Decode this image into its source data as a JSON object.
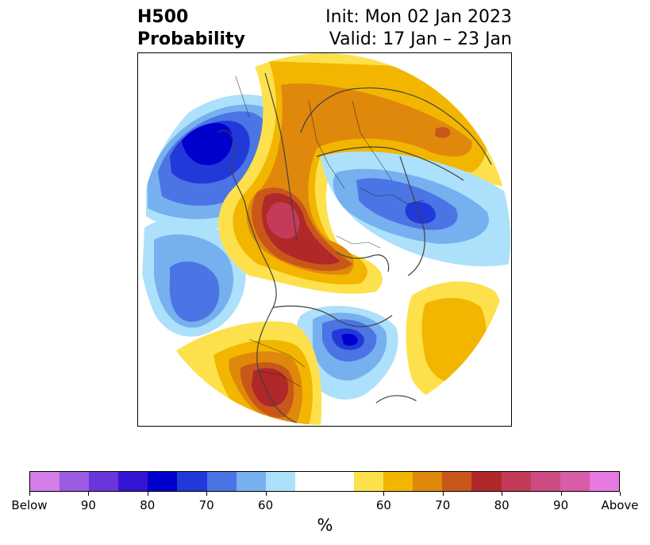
{
  "header": {
    "title_line1": "H500",
    "title_line2": "Probability",
    "init": "Init: Mon 02 Jan 2023",
    "valid": "Valid: 17 Jan – 23 Jan"
  },
  "map": {
    "field": "500 hPa height anomaly probability",
    "projection": "polar stereographic (North America / North Pole)",
    "features": [
      {
        "name": "strong-below-north-pacific",
        "category": "below",
        "max_level": 85
      },
      {
        "name": "below-eastern-canada",
        "category": "below",
        "max_level": 85
      },
      {
        "name": "below-siberia",
        "category": "below",
        "max_level": 75
      },
      {
        "name": "above-arctic-ocean",
        "category": "above",
        "max_level": 85
      },
      {
        "name": "above-southwest-us",
        "category": "above",
        "max_level": 80
      },
      {
        "name": "above-north-atlantic",
        "category": "above",
        "max_level": 65
      },
      {
        "name": "above-eurasia",
        "category": "above",
        "max_level": 75
      }
    ]
  },
  "colorbar": {
    "unit_label": "%",
    "colors": [
      "#d57ee9",
      "#9b5be2",
      "#6936da",
      "#3415d1",
      "#0000cd",
      "#2139d9",
      "#4b74e4",
      "#76b0ef",
      "#ade0fa",
      "#ffffff",
      "#ffffff",
      "#fde14c",
      "#f2b600",
      "#df880c",
      "#c9571a",
      "#b02828",
      "#c33b58",
      "#cd4d83",
      "#d85ca8",
      "#e67ae0"
    ],
    "labels": [
      "Below",
      "90",
      "80",
      "70",
      "60",
      "60",
      "70",
      "80",
      "90",
      "Above"
    ]
  }
}
